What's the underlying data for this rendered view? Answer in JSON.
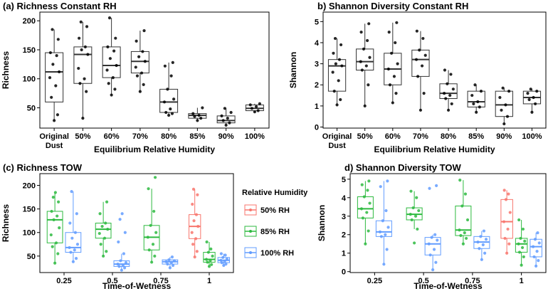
{
  "legend": {
    "title": "Relative Humidity",
    "items": [
      {
        "label": "50% RH",
        "color": "#F8766D"
      },
      {
        "label": "85% RH",
        "color": "#2DBA3F"
      },
      {
        "label": "100% RH",
        "color": "#619CFF"
      }
    ]
  },
  "chart_data": [
    {
      "id": "a",
      "type": "box",
      "title": "(a) Richness Constant RH",
      "xlabel": "Equilibrium Relative Humidity",
      "ylabel": "Richness",
      "ylim": [
        15,
        215
      ],
      "yticks": [
        50,
        100,
        150,
        200
      ],
      "categories": [
        "Original\nDust",
        "50%",
        "60%",
        "70%",
        "80%",
        "85%",
        "90%",
        "100%"
      ],
      "boxes": [
        {
          "q1": 60,
          "median": 112,
          "q3": 145,
          "min": 28,
          "max": 185,
          "points": [
            28,
            38,
            68,
            88,
            102,
            112,
            125,
            140,
            145,
            168,
            185
          ]
        },
        {
          "q1": 92,
          "median": 142,
          "q3": 155,
          "min": 32,
          "max": 198,
          "points": [
            32,
            78,
            92,
            100,
            118,
            142,
            150,
            155,
            170,
            190,
            198
          ]
        },
        {
          "q1": 102,
          "median": 123,
          "q3": 155,
          "min": 72,
          "max": 205,
          "points": [
            72,
            82,
            92,
            102,
            115,
            123,
            135,
            148,
            155,
            170,
            205
          ]
        },
        {
          "q1": 110,
          "median": 130,
          "q3": 147,
          "min": 78,
          "max": 183,
          "points": [
            78,
            90,
            105,
            110,
            120,
            130,
            138,
            147,
            165,
            183
          ]
        },
        {
          "q1": 42,
          "median": 60,
          "q3": 82,
          "min": 37,
          "max": 128,
          "points": [
            37,
            40,
            42,
            48,
            60,
            65,
            82,
            105,
            122,
            128
          ]
        },
        {
          "q1": 32,
          "median": 37,
          "q3": 40,
          "min": 28,
          "max": 50,
          "points": [
            28,
            32,
            35,
            37,
            40,
            50
          ]
        },
        {
          "q1": 24,
          "median": 28,
          "q3": 36,
          "min": 20,
          "max": 49,
          "points": [
            20,
            24,
            28,
            32,
            36,
            42,
            49
          ]
        },
        {
          "q1": 45,
          "median": 49,
          "q3": 55,
          "min": 43,
          "max": 57,
          "points": [
            43,
            45,
            49,
            52,
            55,
            57
          ]
        }
      ]
    },
    {
      "id": "b",
      "type": "box",
      "title": "b) Shannon Diversity Constant RH",
      "xlabel": "Equilibrium Relative Humidity",
      "ylabel": "Shannon",
      "ylim": [
        -0.05,
        5.45
      ],
      "yticks": [
        0,
        1,
        2,
        3,
        4,
        5
      ],
      "categories": [
        "Original\nDust",
        "50%",
        "60%",
        "70%",
        "80%",
        "85%",
        "90%",
        "100%"
      ],
      "boxes": [
        {
          "q1": 1.7,
          "median": 2.9,
          "q3": 3.2,
          "min": 1.05,
          "max": 4.2,
          "points": [
            1.05,
            1.3,
            1.7,
            2.2,
            2.6,
            2.9,
            3.0,
            3.2,
            3.5,
            3.9,
            4.2
          ]
        },
        {
          "q1": 2.7,
          "median": 3.1,
          "q3": 3.7,
          "min": 1.0,
          "max": 4.9,
          "points": [
            1.0,
            2.0,
            2.7,
            2.9,
            3.1,
            3.3,
            3.7,
            4.1,
            4.5,
            4.9
          ]
        },
        {
          "q1": 2.0,
          "median": 2.75,
          "q3": 3.5,
          "min": 1.15,
          "max": 4.95,
          "points": [
            1.15,
            1.6,
            2.0,
            2.4,
            2.75,
            3.0,
            3.5,
            4.0,
            4.5,
            4.95
          ]
        },
        {
          "q1": 2.4,
          "median": 3.2,
          "q3": 3.65,
          "min": 0.8,
          "max": 4.55,
          "points": [
            0.8,
            1.6,
            2.4,
            2.9,
            3.2,
            3.4,
            3.65,
            4.2,
            4.55
          ]
        },
        {
          "q1": 1.35,
          "median": 1.6,
          "q3": 2.05,
          "min": 0.8,
          "max": 2.7,
          "points": [
            0.8,
            1.1,
            1.35,
            1.5,
            1.6,
            1.8,
            2.05,
            2.5,
            2.7
          ]
        },
        {
          "q1": 0.95,
          "median": 1.2,
          "q3": 1.7,
          "min": 0.7,
          "max": 2.0,
          "points": [
            0.7,
            0.95,
            1.1,
            1.2,
            1.5,
            1.7,
            2.0
          ]
        },
        {
          "q1": 0.5,
          "median": 1.05,
          "q3": 1.7,
          "min": 0.15,
          "max": 1.85,
          "points": [
            0.15,
            0.5,
            0.8,
            1.05,
            1.4,
            1.7,
            1.85
          ]
        },
        {
          "q1": 1.1,
          "median": 1.4,
          "q3": 1.7,
          "min": 0.7,
          "max": 1.8,
          "points": [
            0.7,
            1.1,
            1.3,
            1.4,
            1.6,
            1.7,
            1.8
          ]
        }
      ]
    },
    {
      "id": "c",
      "type": "box",
      "title": "(c) Richness TOW",
      "xlabel": "Time-of-Wetness",
      "ylabel": "Richness",
      "ylim": [
        15,
        225
      ],
      "yticks": [
        50,
        100,
        150,
        200
      ],
      "categories": [
        "0.25",
        "0.5",
        "0.75",
        "1"
      ],
      "groups": [
        {
          "category": "0.25",
          "series": "85% RH",
          "q1": 78,
          "median": 127,
          "q3": 145,
          "min": 35,
          "max": 185,
          "points": [
            35,
            55,
            70,
            78,
            95,
            110,
            127,
            135,
            145,
            165,
            175,
            185
          ]
        },
        {
          "category": "0.25",
          "series": "100% RH",
          "q1": 58,
          "median": 68,
          "q3": 100,
          "min": 38,
          "max": 187,
          "points": [
            38,
            45,
            58,
            63,
            68,
            75,
            88,
            100,
            120,
            140,
            187
          ]
        },
        {
          "category": "0.5",
          "series": "85% RH",
          "q1": 88,
          "median": 107,
          "q3": 120,
          "min": 50,
          "max": 165,
          "points": [
            50,
            60,
            75,
            88,
            98,
            107,
            113,
            120,
            140,
            165
          ]
        },
        {
          "category": "0.5",
          "series": "100% RH",
          "q1": 28,
          "median": 33,
          "q3": 40,
          "min": 20,
          "max": 55,
          "points": [
            20,
            25,
            28,
            30,
            33,
            36,
            40,
            55,
            80,
            100,
            128,
            140
          ]
        },
        {
          "category": "0.75",
          "series": "85% RH",
          "q1": 63,
          "median": 90,
          "q3": 115,
          "min": 37,
          "max": 193,
          "points": [
            37,
            50,
            63,
            75,
            90,
            100,
            115,
            145,
            193,
            217
          ]
        },
        {
          "category": "0.75",
          "series": "100% RH",
          "q1": 33,
          "median": 38,
          "q3": 42,
          "min": 25,
          "max": 48,
          "points": [
            25,
            30,
            33,
            36,
            38,
            40,
            42,
            48
          ]
        },
        {
          "category": "1",
          "series": "50% RH",
          "q1": 87,
          "median": 113,
          "q3": 138,
          "min": 48,
          "max": 192,
          "points": [
            48,
            60,
            75,
            87,
            100,
            113,
            125,
            138,
            160,
            180,
            192
          ]
        },
        {
          "category": "1",
          "series": "85% RH",
          "q1": 37,
          "median": 43,
          "q3": 58,
          "min": 28,
          "max": 80,
          "points": [
            28,
            32,
            37,
            40,
            43,
            50,
            58,
            65,
            80
          ]
        },
        {
          "category": "1",
          "series": "100% RH",
          "q1": 36,
          "median": 41,
          "q3": 47,
          "min": 30,
          "max": 55,
          "points": [
            30,
            33,
            36,
            39,
            41,
            44,
            47,
            52,
            55
          ]
        }
      ]
    },
    {
      "id": "d",
      "type": "box",
      "title": "d) Shannon Diversity TOW",
      "xlabel": "Time-of-Wetness",
      "ylabel": "Shannon",
      "ylim": [
        -0.05,
        5.3
      ],
      "yticks": [
        0,
        1,
        2,
        3,
        4,
        5
      ],
      "categories": [
        "0.25",
        "0.5",
        "0.75",
        "1"
      ],
      "groups": [
        {
          "category": "0.25",
          "series": "85% RH",
          "q1": 2.9,
          "median": 3.4,
          "q3": 4.05,
          "min": 1.5,
          "max": 4.9,
          "points": [
            1.5,
            2.2,
            2.9,
            3.2,
            3.4,
            3.7,
            4.05,
            4.4,
            4.7,
            4.9
          ]
        },
        {
          "category": "0.25",
          "series": "100% RH",
          "q1": 1.9,
          "median": 2.15,
          "q3": 2.75,
          "min": 0.4,
          "max": 4.9,
          "points": [
            0.4,
            1.2,
            1.9,
            2.0,
            2.15,
            2.4,
            2.75,
            3.3,
            4.6,
            4.9
          ]
        },
        {
          "category": "0.5",
          "series": "85% RH",
          "q1": 2.8,
          "median": 3.1,
          "q3": 3.45,
          "min": 2.3,
          "max": 4.35,
          "points": [
            1.55,
            2.3,
            2.8,
            3.0,
            3.1,
            3.3,
            3.45,
            4.0,
            4.35
          ]
        },
        {
          "category": "0.5",
          "series": "100% RH",
          "q1": 0.9,
          "median": 1.5,
          "q3": 1.85,
          "min": 0.1,
          "max": 2.0,
          "points": [
            0.1,
            0.5,
            0.9,
            1.2,
            1.5,
            1.7,
            1.85,
            2.0,
            4.5,
            4.65
          ]
        },
        {
          "category": "0.75",
          "series": "85% RH",
          "q1": 1.95,
          "median": 2.25,
          "q3": 3.55,
          "min": 1.5,
          "max": 4.95,
          "points": [
            1.5,
            1.8,
            1.95,
            2.1,
            2.25,
            2.8,
            3.55,
            4.2,
            4.95
          ]
        },
        {
          "category": "0.75",
          "series": "100% RH",
          "q1": 1.25,
          "median": 1.6,
          "q3": 1.9,
          "min": 0.65,
          "max": 2.2,
          "points": [
            0.65,
            1.0,
            1.25,
            1.45,
            1.6,
            1.75,
            1.9,
            2.2
          ]
        },
        {
          "category": "1",
          "series": "50% RH",
          "q1": 1.8,
          "median": 2.7,
          "q3": 3.9,
          "min": 1.0,
          "max": 4.4,
          "points": [
            1.0,
            1.5,
            1.8,
            2.3,
            2.7,
            3.2,
            3.9,
            4.2,
            4.4
          ]
        },
        {
          "category": "1",
          "series": "85% RH",
          "q1": 1.05,
          "median": 1.5,
          "q3": 1.8,
          "min": 0.35,
          "max": 2.8,
          "points": [
            0.35,
            0.8,
            1.05,
            1.3,
            1.5,
            1.65,
            1.8,
            2.3,
            2.8
          ]
        },
        {
          "category": "1",
          "series": "100% RH",
          "q1": 0.8,
          "median": 1.35,
          "q3": 1.75,
          "min": 0.3,
          "max": 2.1,
          "points": [
            0.3,
            0.6,
            0.8,
            1.1,
            1.35,
            1.55,
            1.75,
            2.1
          ]
        }
      ]
    }
  ]
}
